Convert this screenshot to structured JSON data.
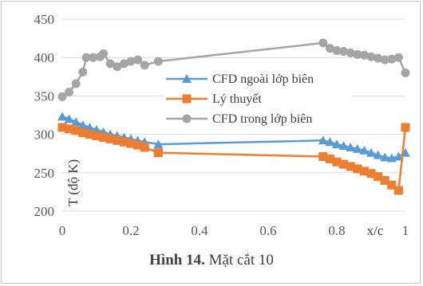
{
  "chart_data": {
    "type": "line",
    "xlabel": "x/c",
    "ylabel": "T (độ K)",
    "xlim": [
      0,
      1
    ],
    "ylim": [
      200,
      450
    ],
    "x_ticks": [
      "0",
      "0.2",
      "0.4",
      "0.6",
      "0.8",
      "1"
    ],
    "y_ticks": [
      "200",
      "250",
      "300",
      "350",
      "400",
      "450"
    ],
    "grid": "horizontal",
    "legend_position": "center-right",
    "caption_bold": "Hình 14.",
    "caption_text": " Mặt cắt 10",
    "series": [
      {
        "name": "CFD ngoài lớp biên",
        "color": "#5b9bd5",
        "marker": "triangle",
        "points": [
          [
            0.0,
            323
          ],
          [
            0.02,
            320
          ],
          [
            0.04,
            316
          ],
          [
            0.06,
            312
          ],
          [
            0.08,
            309
          ],
          [
            0.1,
            306
          ],
          [
            0.12,
            303
          ],
          [
            0.14,
            300
          ],
          [
            0.16,
            298
          ],
          [
            0.18,
            296
          ],
          [
            0.2,
            294
          ],
          [
            0.22,
            292
          ],
          [
            0.24,
            290
          ],
          [
            0.28,
            287
          ],
          [
            0.76,
            292
          ],
          [
            0.78,
            290
          ],
          [
            0.8,
            287
          ],
          [
            0.82,
            285
          ],
          [
            0.84,
            283
          ],
          [
            0.86,
            281
          ],
          [
            0.88,
            279
          ],
          [
            0.9,
            276
          ],
          [
            0.92,
            273
          ],
          [
            0.94,
            270
          ],
          [
            0.96,
            269
          ],
          [
            0.98,
            271
          ],
          [
            1.0,
            276
          ]
        ]
      },
      {
        "name": "Lý thuyết",
        "color": "#ed7d31",
        "marker": "square",
        "points": [
          [
            0.0,
            309
          ],
          [
            0.02,
            307
          ],
          [
            0.04,
            305
          ],
          [
            0.06,
            302
          ],
          [
            0.08,
            300
          ],
          [
            0.1,
            298
          ],
          [
            0.12,
            296
          ],
          [
            0.14,
            294
          ],
          [
            0.16,
            292
          ],
          [
            0.18,
            290
          ],
          [
            0.2,
            288
          ],
          [
            0.22,
            286
          ],
          [
            0.24,
            283
          ],
          [
            0.28,
            276
          ],
          [
            0.76,
            271
          ],
          [
            0.78,
            268
          ],
          [
            0.8,
            264
          ],
          [
            0.82,
            261
          ],
          [
            0.84,
            258
          ],
          [
            0.86,
            255
          ],
          [
            0.88,
            252
          ],
          [
            0.9,
            249
          ],
          [
            0.92,
            245
          ],
          [
            0.94,
            240
          ],
          [
            0.96,
            234
          ],
          [
            0.98,
            227
          ],
          [
            1.0,
            309
          ]
        ]
      },
      {
        "name": "CFD trong lớp biên",
        "color": "#a5a5a5",
        "marker": "circle",
        "points": [
          [
            0.0,
            349
          ],
          [
            0.02,
            355
          ],
          [
            0.04,
            366
          ],
          [
            0.06,
            381
          ],
          [
            0.07,
            400
          ],
          [
            0.09,
            400
          ],
          [
            0.11,
            401
          ],
          [
            0.12,
            405
          ],
          [
            0.14,
            392
          ],
          [
            0.16,
            388
          ],
          [
            0.18,
            392
          ],
          [
            0.2,
            395
          ],
          [
            0.22,
            397
          ],
          [
            0.24,
            390
          ],
          [
            0.28,
            395
          ],
          [
            0.76,
            419
          ],
          [
            0.78,
            412
          ],
          [
            0.8,
            409
          ],
          [
            0.82,
            408
          ],
          [
            0.84,
            406
          ],
          [
            0.86,
            404
          ],
          [
            0.88,
            403
          ],
          [
            0.9,
            401
          ],
          [
            0.92,
            399
          ],
          [
            0.94,
            397
          ],
          [
            0.96,
            398
          ],
          [
            0.98,
            400
          ],
          [
            1.0,
            380
          ]
        ]
      }
    ]
  }
}
